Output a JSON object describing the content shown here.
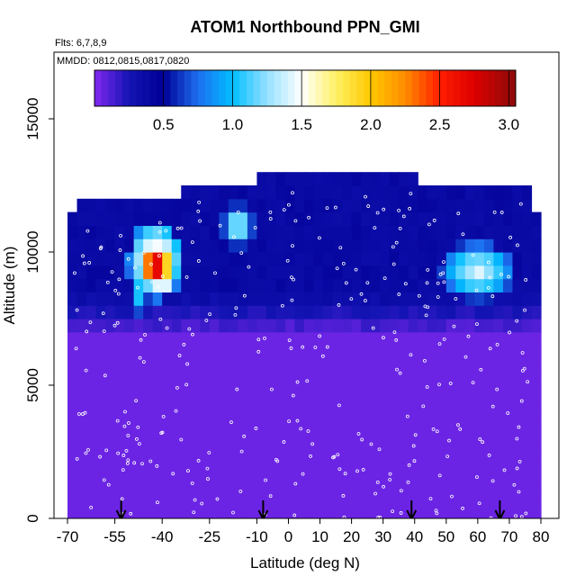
{
  "chart_data": {
    "type": "heatmap",
    "title": "ATOM1 Northbound PPN_GMI",
    "notes": [
      "Flts: 6,7,8,9",
      "MMDD: 0812,0815,0817,0820"
    ],
    "xlabel": "Latitude (deg N)",
    "ylabel": "Altitude (m)",
    "xlim": [
      -70,
      80
    ],
    "ylim": [
      0,
      17500
    ],
    "x_ticks": [
      -70,
      -55,
      -40,
      -25,
      -10,
      0,
      10,
      20,
      30,
      40,
      50,
      60,
      70,
      80
    ],
    "y_ticks": [
      0,
      5000,
      10000,
      15000
    ],
    "colorbar": {
      "range": [
        0,
        3.05
      ],
      "ticks": [
        0.5,
        1.0,
        1.5,
        2.0,
        2.5,
        3.0
      ],
      "tick_labels": [
        "0.5",
        "1.0",
        "1.5",
        "2.0",
        "2.5",
        "3.0"
      ],
      "placement": "top"
    },
    "background_value": 0.05,
    "domain_columns": [
      {
        "x": [
          -70,
          -67
        ],
        "top": 11500
      },
      {
        "x": [
          -67,
          -61
        ],
        "top": 12000
      },
      {
        "x": [
          -61,
          -35
        ],
        "top": 12000
      },
      {
        "x": [
          -35,
          -11
        ],
        "top": 12500
      },
      {
        "x": [
          -11,
          40
        ],
        "top": 13000
      },
      {
        "x": [
          40,
          76
        ],
        "top": 12500
      },
      {
        "x": [
          76,
          80
        ],
        "top": 11500
      }
    ],
    "upper_band": {
      "value": 0.35,
      "from_altitude": 7000
    },
    "plumes": [
      {
        "x": -42,
        "y": 9700,
        "rx": 9,
        "ry": 1500,
        "value": 1.6
      },
      {
        "x": -42,
        "y": 9500,
        "rx": 5,
        "ry": 700,
        "value": 2.9
      },
      {
        "x": -40,
        "y": 9000,
        "rx": 2,
        "ry": 400,
        "value": 3.0
      },
      {
        "x": -47,
        "y": 8500,
        "rx": 3,
        "ry": 900,
        "value": 1.1
      },
      {
        "x": -16,
        "y": 11000,
        "rx": 5,
        "ry": 800,
        "value": 1.3
      },
      {
        "x": 60,
        "y": 9300,
        "rx": 12,
        "ry": 1100,
        "value": 1.3
      },
      {
        "x": 60,
        "y": 9400,
        "rx": 6,
        "ry": 500,
        "value": 1.5
      }
    ],
    "flight_marker_latitudes": [
      -53,
      -8,
      39,
      67
    ]
  }
}
